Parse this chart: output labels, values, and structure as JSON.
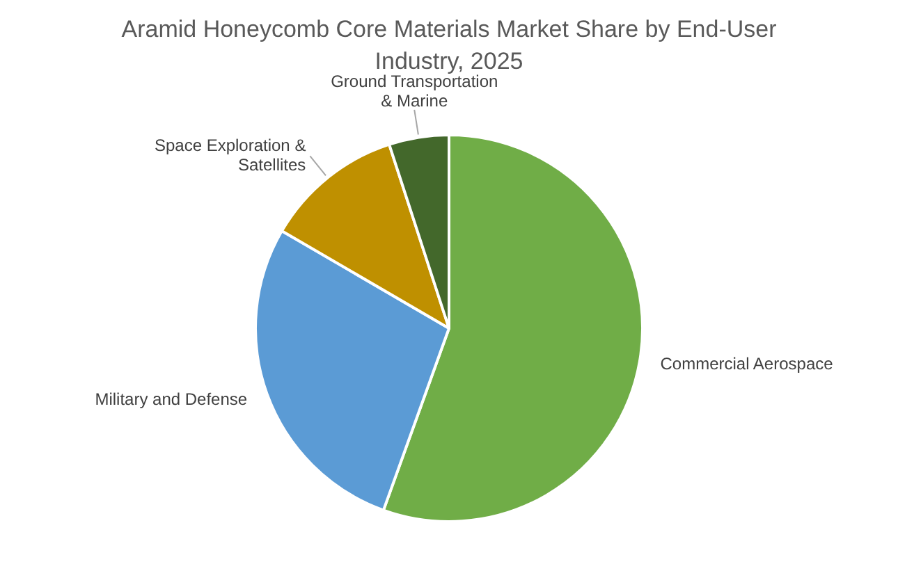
{
  "chart_data": {
    "type": "pie",
    "title": "Aramid Honeycomb Core Materials Market Share by End-User Industry, 2025",
    "categories": [
      "Commercial Aerospace",
      "Military and Defense",
      "Space Exploration & Satellites",
      "Ground Transportation & Marine"
    ],
    "values": [
      55.5,
      27.9,
      11.6,
      5
    ],
    "colors": [
      "#70ad47",
      "#5b9bd5",
      "#bf9000",
      "#43682b"
    ],
    "legend": false
  }
}
